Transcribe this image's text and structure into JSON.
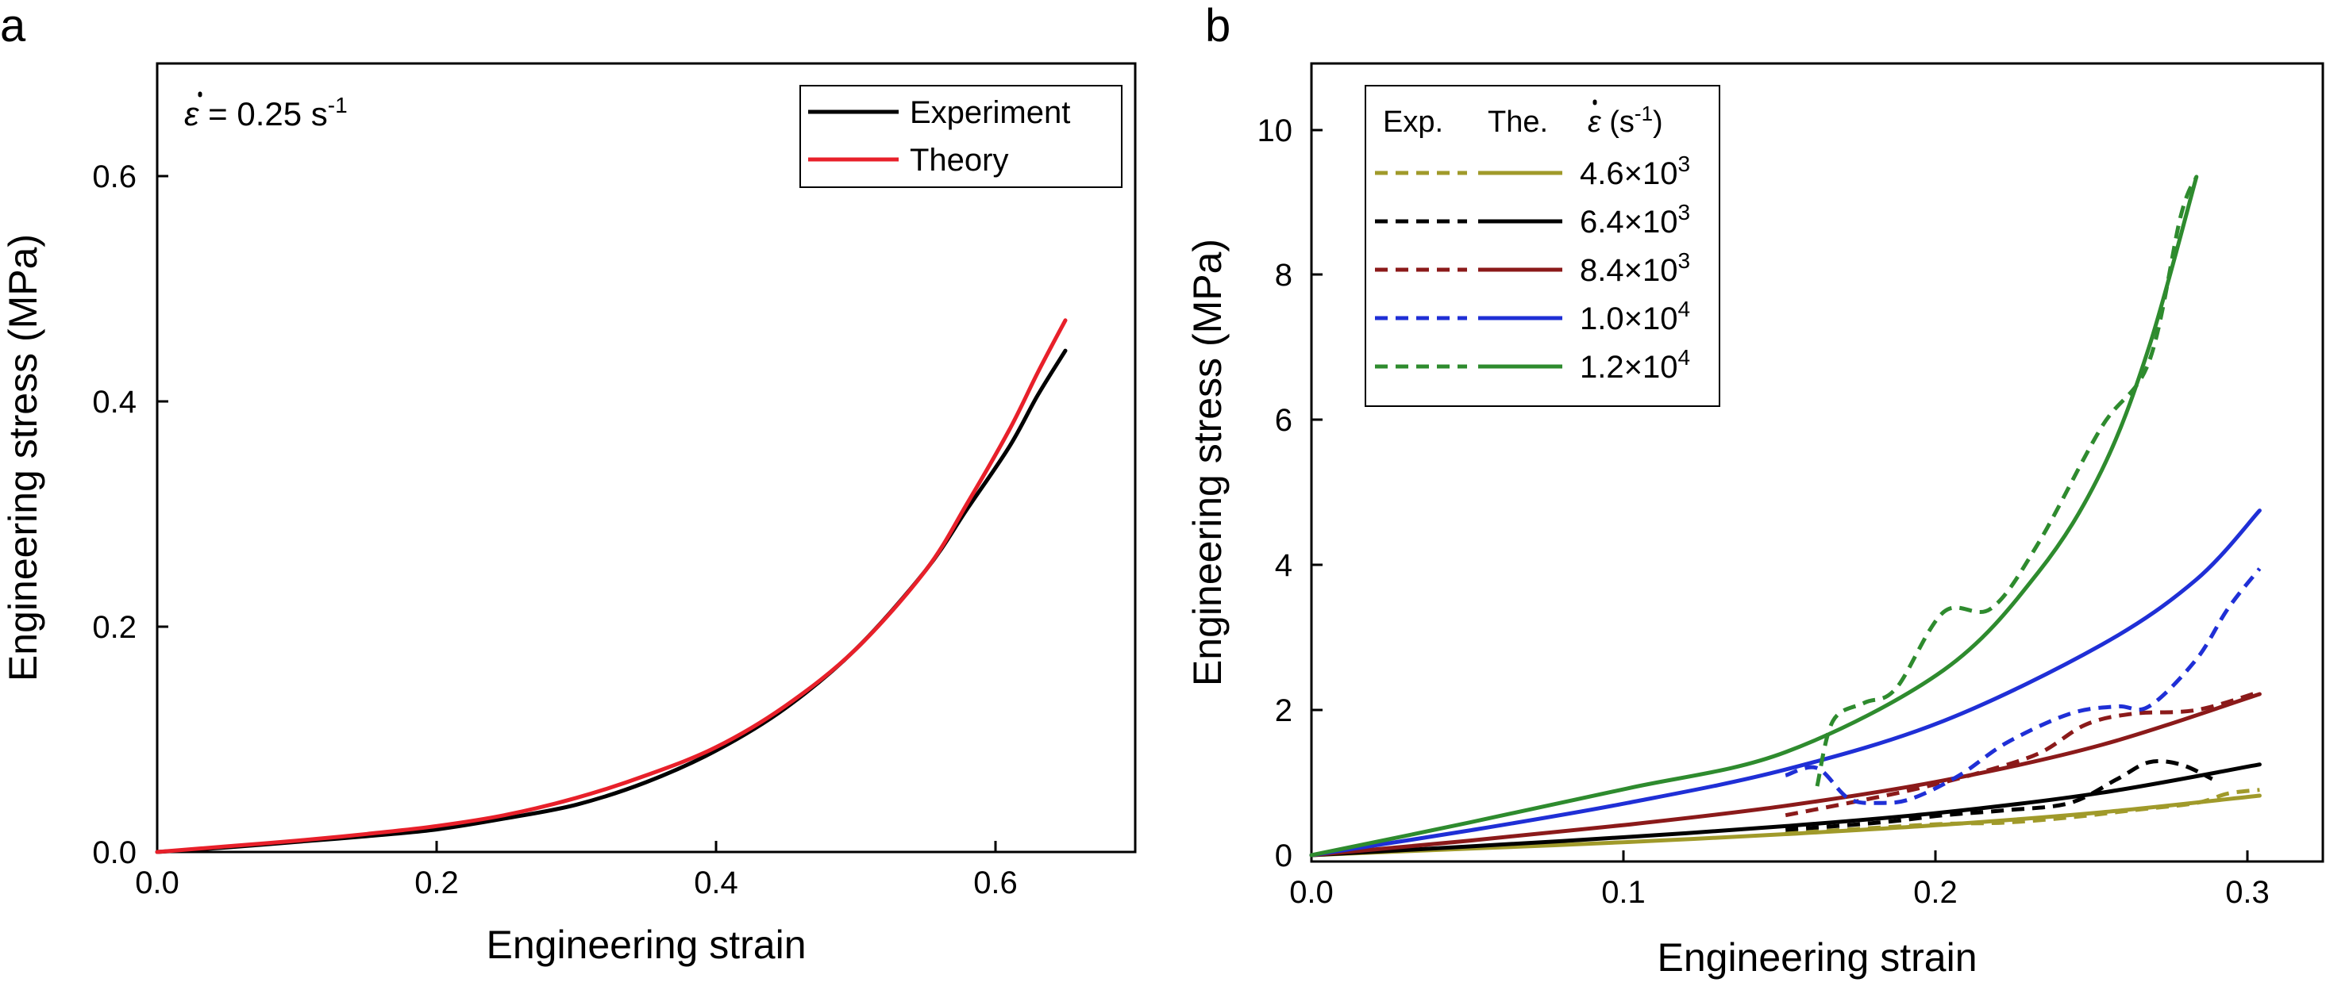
{
  "panels": [
    {
      "letter": "a",
      "chart_data": {
        "type": "line",
        "xlabel": "Engineering strain",
        "ylabel": "Engineering stress (MPa)",
        "xlim": [
          0.0,
          0.7
        ],
        "ylim": [
          0.0,
          0.7
        ],
        "xticks": [
          0.0,
          0.2,
          0.4,
          0.6
        ],
        "xtick_labels": [
          "0.0",
          "0.2",
          "0.4",
          "0.6"
        ],
        "yticks": [
          0.0,
          0.2,
          0.4,
          0.6
        ],
        "ytick_labels": [
          "0.0",
          "0.2",
          "0.4",
          "0.6"
        ],
        "annotation": {
          "symbol": "ε",
          "text": " = 0.25 s",
          "sup": "-1"
        },
        "legend_position": "top-right",
        "grid": false,
        "series": [
          {
            "name": "Experiment",
            "color": "#000000",
            "dash": "solid",
            "x": [
              0,
              0.05,
              0.1,
              0.15,
              0.2,
              0.25,
              0.3,
              0.35,
              0.4,
              0.45,
              0.5,
              0.55,
              0.58,
              0.61,
              0.63,
              0.65
            ],
            "y": [
              0,
              0.004,
              0.009,
              0.014,
              0.02,
              0.03,
              0.042,
              0.062,
              0.09,
              0.128,
              0.18,
              0.25,
              0.305,
              0.36,
              0.405,
              0.445
            ]
          },
          {
            "name": "Theory",
            "color": "#e8202a",
            "dash": "solid",
            "x": [
              0,
              0.05,
              0.1,
              0.15,
              0.2,
              0.25,
              0.3,
              0.35,
              0.4,
              0.45,
              0.5,
              0.55,
              0.58,
              0.61,
              0.63,
              0.65
            ],
            "y": [
              0,
              0.005,
              0.01,
              0.016,
              0.023,
              0.033,
              0.048,
              0.068,
              0.093,
              0.13,
              0.18,
              0.25,
              0.31,
              0.375,
              0.425,
              0.472
            ]
          }
        ]
      }
    },
    {
      "letter": "b",
      "chart_data": {
        "type": "line",
        "xlabel": "Engineering strain",
        "ylabel": "Engineering stress (MPa)",
        "xlim": [
          0.0,
          0.32
        ],
        "ylim": [
          0,
          11
        ],
        "xticks": [
          0.0,
          0.1,
          0.2,
          0.3
        ],
        "xtick_labels": [
          "0.0",
          "0.1",
          "0.2",
          "0.3"
        ],
        "yticks": [
          0,
          2,
          4,
          6,
          8,
          10
        ],
        "ytick_labels": [
          "0",
          "2",
          "4",
          "6",
          "8",
          "10"
        ],
        "legend_position": "top-left",
        "legend_headers": {
          "exp": "Exp.",
          "the": "The.",
          "rate_symbol": "ε",
          "rate_unit": " (s",
          "rate_sup": "-1",
          "rate_close": ")"
        },
        "grid": false,
        "series": [
          {
            "name": "4.6×10",
            "sup": "3",
            "color": "#a09a2a",
            "experiment": {
              "x": [
                0.15,
                0.18,
                0.2,
                0.22,
                0.24,
                0.26,
                0.28,
                0.29,
                0.3
              ],
              "y": [
                0.3,
                0.38,
                0.43,
                0.45,
                0.52,
                0.62,
                0.72,
                0.85,
                0.9
              ]
            },
            "theory": {
              "x": [
                0,
                0.05,
                0.1,
                0.15,
                0.2,
                0.25,
                0.3
              ],
              "y": [
                0,
                0.09,
                0.18,
                0.29,
                0.42,
                0.59,
                0.82
              ]
            }
          },
          {
            "name": "6.4×10",
            "sup": "3",
            "color": "#000000",
            "experiment": {
              "x": [
                0.15,
                0.18,
                0.2,
                0.22,
                0.24,
                0.255,
                0.265,
                0.275,
                0.285
              ],
              "y": [
                0.35,
                0.45,
                0.55,
                0.62,
                0.72,
                1.05,
                1.28,
                1.25,
                1.05
              ]
            },
            "theory": {
              "x": [
                0,
                0.05,
                0.1,
                0.15,
                0.2,
                0.25,
                0.3
              ],
              "y": [
                0,
                0.12,
                0.25,
                0.4,
                0.59,
                0.86,
                1.25
              ]
            }
          },
          {
            "name": "8.4×10",
            "sup": "3",
            "color": "#8b1a1a",
            "experiment": {
              "x": [
                0.15,
                0.17,
                0.19,
                0.21,
                0.23,
                0.245,
                0.26,
                0.28,
                0.3
              ],
              "y": [
                0.55,
                0.72,
                0.9,
                1.12,
                1.4,
                1.8,
                1.95,
                2.0,
                2.25
              ]
            },
            "theory": {
              "x": [
                0,
                0.05,
                0.1,
                0.15,
                0.2,
                0.25,
                0.3
              ],
              "y": [
                0,
                0.2,
                0.42,
                0.68,
                1.03,
                1.52,
                2.22
              ]
            }
          },
          {
            "name": "1.0×10",
            "sup": "4",
            "color": "#1f2fd6",
            "experiment": {
              "x": [
                0.15,
                0.16,
                0.17,
                0.18,
                0.19,
                0.205,
                0.22,
                0.24,
                0.255,
                0.265,
                0.28,
                0.29,
                0.3
              ],
              "y": [
                1.1,
                1.2,
                0.78,
                0.72,
                0.78,
                1.1,
                1.55,
                1.95,
                2.05,
                2.05,
                2.7,
                3.4,
                3.95
              ]
            },
            "theory": {
              "x": [
                0,
                0.05,
                0.1,
                0.15,
                0.2,
                0.25,
                0.28,
                0.3
              ],
              "y": [
                0,
                0.34,
                0.72,
                1.18,
                1.85,
                2.9,
                3.8,
                4.75
              ]
            }
          },
          {
            "name": "1.2×10",
            "sup": "4",
            "color": "#2e8b2e",
            "experiment": {
              "x": [
                0.16,
                0.165,
                0.175,
                0.185,
                0.2,
                0.215,
                0.23,
                0.25,
                0.265,
                0.275,
                0.28
              ],
              "y": [
                0.95,
                1.85,
                2.1,
                2.3,
                3.35,
                3.4,
                4.3,
                5.9,
                6.8,
                8.8,
                9.35
              ]
            },
            "theory": {
              "x": [
                0,
                0.05,
                0.1,
                0.15,
                0.2,
                0.23,
                0.25,
                0.265,
                0.28
              ],
              "y": [
                0,
                0.45,
                0.92,
                1.42,
                2.55,
                3.9,
                5.3,
                7.0,
                9.35
              ]
            }
          }
        ]
      }
    }
  ]
}
